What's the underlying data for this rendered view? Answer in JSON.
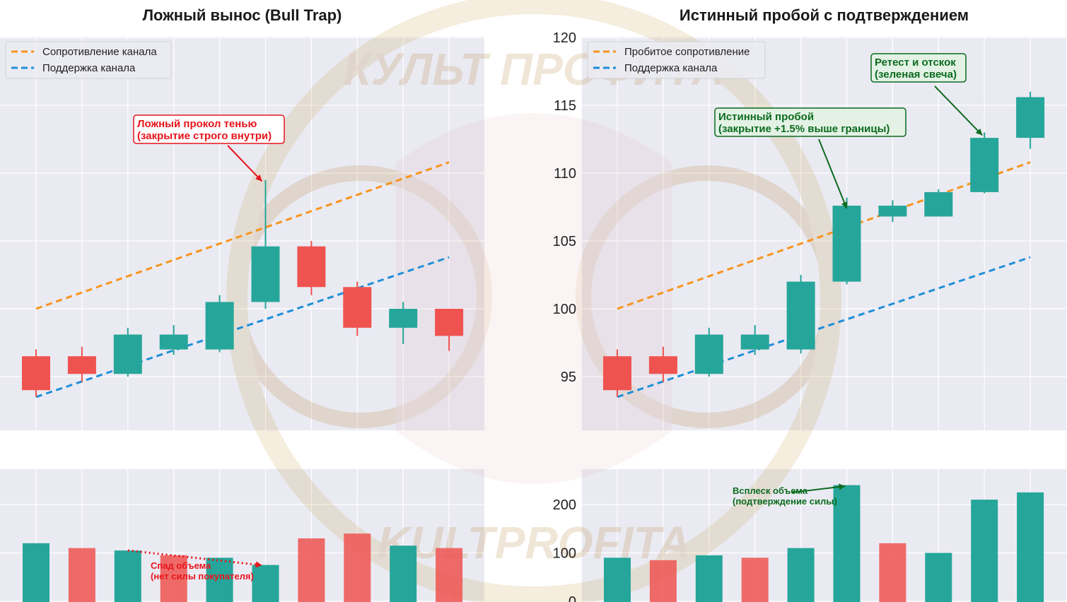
{
  "colors": {
    "bull": "#26a69a",
    "bear": "#ef5350",
    "resistance": "#f7941d",
    "support": "#1e8fd8",
    "panel_bg": "#eaeaf2",
    "grid": "#ffffff",
    "red_annotation": "#e8141b",
    "green_annotation": "#0b6b1e"
  },
  "watermark": {
    "top_text": "КУЛЬТ ПРОФИТА",
    "bottom_text": "KULTPROFITA"
  },
  "chart_data": [
    {
      "type": "candlestick",
      "title": "Ложный вынос (Bull Trap)",
      "legend": {
        "placement": "top-left",
        "entries": [
          "Сопротивление канала",
          "Поддержка канала"
        ]
      },
      "ylim": [
        91,
        120
      ],
      "x": [
        0,
        1,
        2,
        3,
        4,
        5,
        6,
        7,
        8,
        9
      ],
      "ohlc": [
        [
          96.5,
          97,
          93.5,
          94
        ],
        [
          96.5,
          97.2,
          94.6,
          95.2
        ],
        [
          95.2,
          98.6,
          95,
          98.1
        ],
        [
          97,
          98.8,
          96.6,
          98.1
        ],
        [
          97,
          101,
          96.8,
          100.5
        ],
        [
          100.5,
          109.5,
          100,
          104.6
        ],
        [
          104.6,
          105,
          101,
          101.6
        ],
        [
          101.6,
          102,
          98,
          98.6
        ],
        [
          98.6,
          100.5,
          97.4,
          100
        ],
        [
          100,
          100,
          96.9,
          98
        ]
      ],
      "resistance_line": {
        "x": [
          0,
          9
        ],
        "y": [
          100,
          110.8
        ]
      },
      "support_line": {
        "x": [
          0,
          9
        ],
        "y": [
          93.5,
          103.8
        ]
      },
      "annotations": [
        {
          "text_lines": [
            "Ложный прокол тенью",
            "(закрытие строго внутри)"
          ],
          "target": [
            5,
            109.5
          ]
        }
      ]
    },
    {
      "type": "bar",
      "title": "",
      "ylim": [
        0,
        235
      ],
      "values": [
        120,
        110,
        105,
        95,
        90,
        75,
        130,
        140,
        115,
        110
      ],
      "direction": [
        "bull",
        "bear",
        "bull",
        "bear",
        "bull",
        "bull",
        "bear",
        "bear",
        "bull",
        "bear"
      ],
      "annotations": [
        {
          "text_lines": [
            "Спад объема",
            "(нет силы покупателя)"
          ],
          "trend_from": [
            2,
            105
          ],
          "trend_to": [
            5,
            75
          ]
        }
      ]
    },
    {
      "type": "candlestick",
      "title": "Истинный пробой с подтверждением",
      "legend": {
        "placement": "top-left",
        "entries": [
          "Пробитое сопротивление",
          "Поддержка канала"
        ]
      },
      "ylim": [
        91,
        120
      ],
      "yticks": [
        95,
        100,
        105,
        110,
        115,
        120
      ],
      "x": [
        0,
        1,
        2,
        3,
        4,
        5,
        6,
        7,
        8,
        9
      ],
      "ohlc": [
        [
          96.5,
          97,
          93.5,
          94
        ],
        [
          96.5,
          97.2,
          94.6,
          95.2
        ],
        [
          95.2,
          98.6,
          95,
          98.1
        ],
        [
          97,
          98.8,
          96.6,
          98.1
        ],
        [
          97,
          102.5,
          96.7,
          102
        ],
        [
          102,
          108.2,
          101.8,
          107.6
        ],
        [
          106.8,
          108,
          106.4,
          107.6
        ],
        [
          106.8,
          108.8,
          106.8,
          108.6
        ],
        [
          108.6,
          113,
          108.5,
          112.6
        ],
        [
          112.6,
          116,
          111.8,
          115.6
        ]
      ],
      "resistance_line": {
        "x": [
          0,
          9
        ],
        "y": [
          100,
          110.8
        ]
      },
      "support_line": {
        "x": [
          0,
          9
        ],
        "y": [
          93.5,
          103.8
        ]
      },
      "annotations": [
        {
          "text_lines": [
            "Истинный пробой",
            "(закрытие +1.5% выше границы)"
          ],
          "target": [
            5,
            107.6
          ]
        },
        {
          "text_lines": [
            "Ретест и отскок",
            "(зеленая свеча)"
          ],
          "target": [
            8,
            113
          ]
        }
      ]
    },
    {
      "type": "bar",
      "title": "",
      "ylim": [
        0,
        235
      ],
      "yticks": [
        0,
        100,
        200
      ],
      "values": [
        90,
        85,
        95,
        90,
        110,
        240,
        120,
        100,
        210,
        225
      ],
      "direction": [
        "bull",
        "bear",
        "bull",
        "bear",
        "bull",
        "bull",
        "bear",
        "bull",
        "bull",
        "bull"
      ],
      "annotations": [
        {
          "text_lines": [
            "Всплеск объема",
            "(подтверждение силы)"
          ],
          "target": [
            5,
            240
          ]
        }
      ]
    }
  ]
}
